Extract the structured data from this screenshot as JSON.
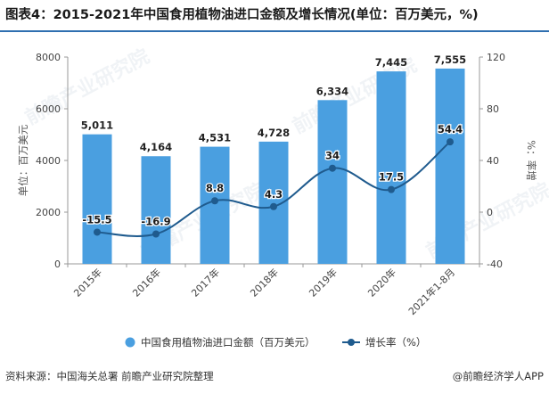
{
  "title": "图表4：2015-2021年中国食用植物油进口金额及增长情况(单位：百万美元，%)",
  "source": "资料来源：中国海关总署 前瞻产业研究院整理",
  "app_logo": "@前瞻经济学人APP",
  "watermark": "前瞻产业研究院",
  "colors": {
    "bar": "#4a9fe0",
    "line": "#1f5b8e",
    "title_rule": "#2f6fb0"
  },
  "chart_data": {
    "type": "bar",
    "categories": [
      "2015年",
      "2016年",
      "2017年",
      "2018年",
      "2019年",
      "2020年",
      "2021年1-8月"
    ],
    "series": [
      {
        "name": "中国食用植物油进口金额（百万美元）",
        "type": "bar",
        "axis": "left",
        "values": [
          5011,
          4164,
          4531,
          4728,
          6334,
          7445,
          7555
        ],
        "labels": [
          "5,011",
          "4,164",
          "4,531",
          "4,728",
          "6,334",
          "7,445",
          "7,555"
        ]
      },
      {
        "name": "增长率（%）",
        "type": "line",
        "axis": "right",
        "values": [
          -15.5,
          -16.9,
          8.8,
          4.3,
          34,
          17.5,
          54.4
        ],
        "labels": [
          "-15.5",
          "-16.9",
          "8.8",
          "4.3",
          "34",
          "17.5",
          "54.4"
        ]
      }
    ],
    "ylabel": "单位：百万美元",
    "y2label": "%：率增",
    "ylim": [
      0,
      8000
    ],
    "y2lim": [
      -40,
      120
    ],
    "yticks": [
      "0",
      "2000",
      "4000",
      "6000",
      "8000"
    ],
    "y2ticks": [
      "-40",
      "0",
      "40",
      "80",
      "120"
    ],
    "legend_position": "bottom"
  }
}
